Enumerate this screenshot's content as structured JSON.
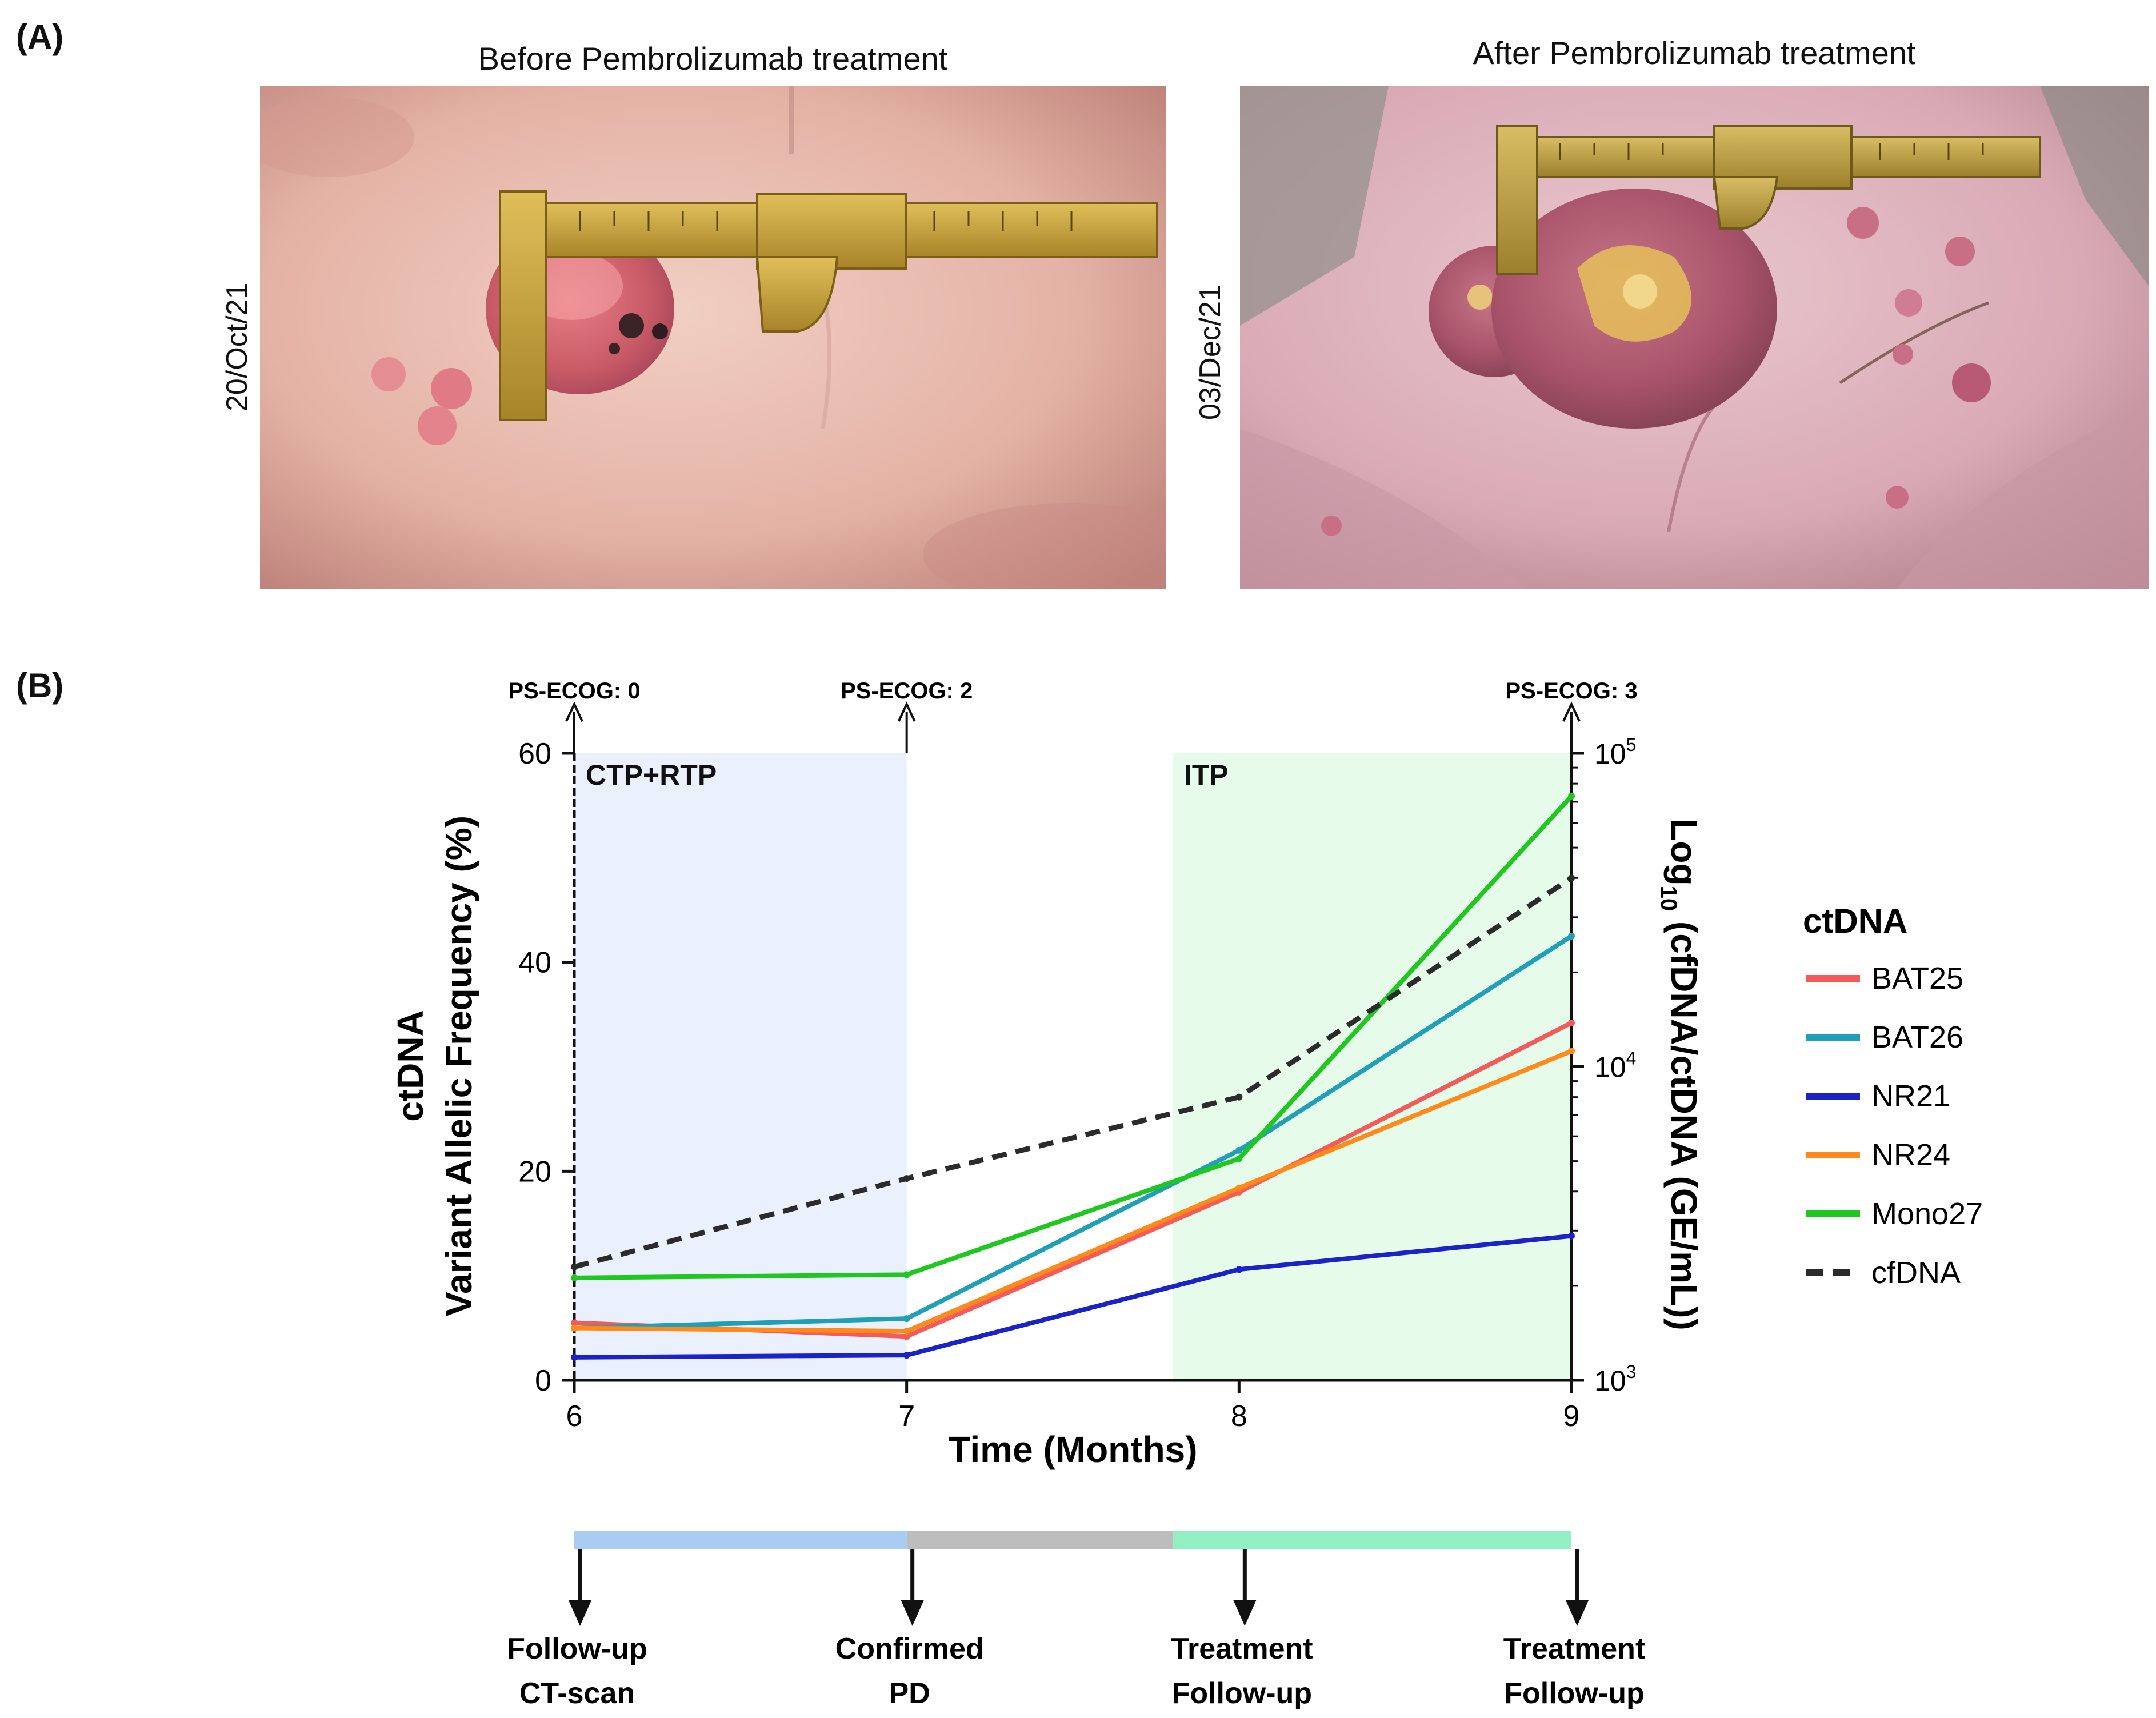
{
  "panel_a": {
    "letter": "(A)",
    "before_title": "Before Pembrolizumab treatment",
    "after_title": "After Pembrolizumab treatment",
    "before_date": "20/Oct/21",
    "after_date": "03/Dec/21"
  },
  "panel_b": {
    "letter": "(B)"
  },
  "chart_data": {
    "type": "line",
    "xlabel": "Time (Months)",
    "ylabel_line1": "ctDNA",
    "ylabel_line2": "Variant Allelic Frequency (%)",
    "y2label_main": "Log",
    "y2label_sub": "10",
    "y2label_rest": " (cfDNA/ctDNA (GE/mL))",
    "xlim": [
      6,
      9
    ],
    "ylim": [
      0,
      60
    ],
    "y2lim": [
      1000,
      100000
    ],
    "y2scale": "log",
    "x_ticks": [
      "6",
      "7",
      "8",
      "9"
    ],
    "y_ticks": [
      "0",
      "20",
      "40",
      "60"
    ],
    "y2_ticks": [
      {
        "base": "10",
        "exp": "3"
      },
      {
        "base": "10",
        "exp": "4"
      },
      {
        "base": "10",
        "exp": "5"
      }
    ],
    "regions": [
      {
        "label": "CTP+RTP",
        "from": 6,
        "to": 7,
        "color": "#eaf1fd"
      },
      {
        "label": "ITP",
        "from": 7.8,
        "to": 9,
        "color": "#e6fbea"
      }
    ],
    "ps_ecog": [
      {
        "x": 6,
        "label": "PS-ECOG: 0"
      },
      {
        "x": 7,
        "label": "PS-ECOG: 2"
      },
      {
        "x": 9,
        "label": "PS-ECOG: 3"
      }
    ],
    "x": [
      6,
      7,
      8,
      9
    ],
    "series": [
      {
        "name": "BAT25",
        "color": "#f45a5a",
        "values": [
          5.5,
          4.2,
          18.0,
          34.2
        ],
        "axis": "left",
        "dashed": false
      },
      {
        "name": "BAT26",
        "color": "#1fa0b8",
        "values": [
          5.0,
          5.9,
          22.0,
          42.5
        ],
        "axis": "left",
        "dashed": false
      },
      {
        "name": "NR21",
        "color": "#1a22c8",
        "values": [
          2.2,
          2.4,
          10.6,
          13.8
        ],
        "axis": "left",
        "dashed": false
      },
      {
        "name": "NR24",
        "color": "#ff8a1a",
        "values": [
          5.0,
          4.7,
          18.4,
          31.5
        ],
        "axis": "left",
        "dashed": false
      },
      {
        "name": "Mono27",
        "color": "#1ec81e",
        "values": [
          9.8,
          10.1,
          21.2,
          55.9
        ],
        "axis": "left",
        "dashed": false
      },
      {
        "name": "cfDNA",
        "color": "#2b2b2b",
        "values": [
          2300,
          4400,
          8000,
          40000
        ],
        "axis": "right",
        "dashed": true
      }
    ],
    "legend": {
      "title": "ctDNA",
      "position": "right"
    },
    "timeline": {
      "segments": [
        {
          "from": 6,
          "to": 7,
          "color": "#a8ccf2"
        },
        {
          "from": 7,
          "to": 7.8,
          "color": "#bdbdbd"
        },
        {
          "from": 7.8,
          "to": 9,
          "color": "#92f0c2"
        }
      ],
      "events": [
        {
          "x": 6,
          "line1": "Follow-up",
          "line2": "CT-scan"
        },
        {
          "x": 7,
          "line1": "Confirmed",
          "line2": "PD"
        },
        {
          "x": 8,
          "line1": "Treatment",
          "line2": "Follow-up"
        },
        {
          "x": 9,
          "line1": "Treatment",
          "line2": "Follow-up"
        }
      ]
    }
  }
}
